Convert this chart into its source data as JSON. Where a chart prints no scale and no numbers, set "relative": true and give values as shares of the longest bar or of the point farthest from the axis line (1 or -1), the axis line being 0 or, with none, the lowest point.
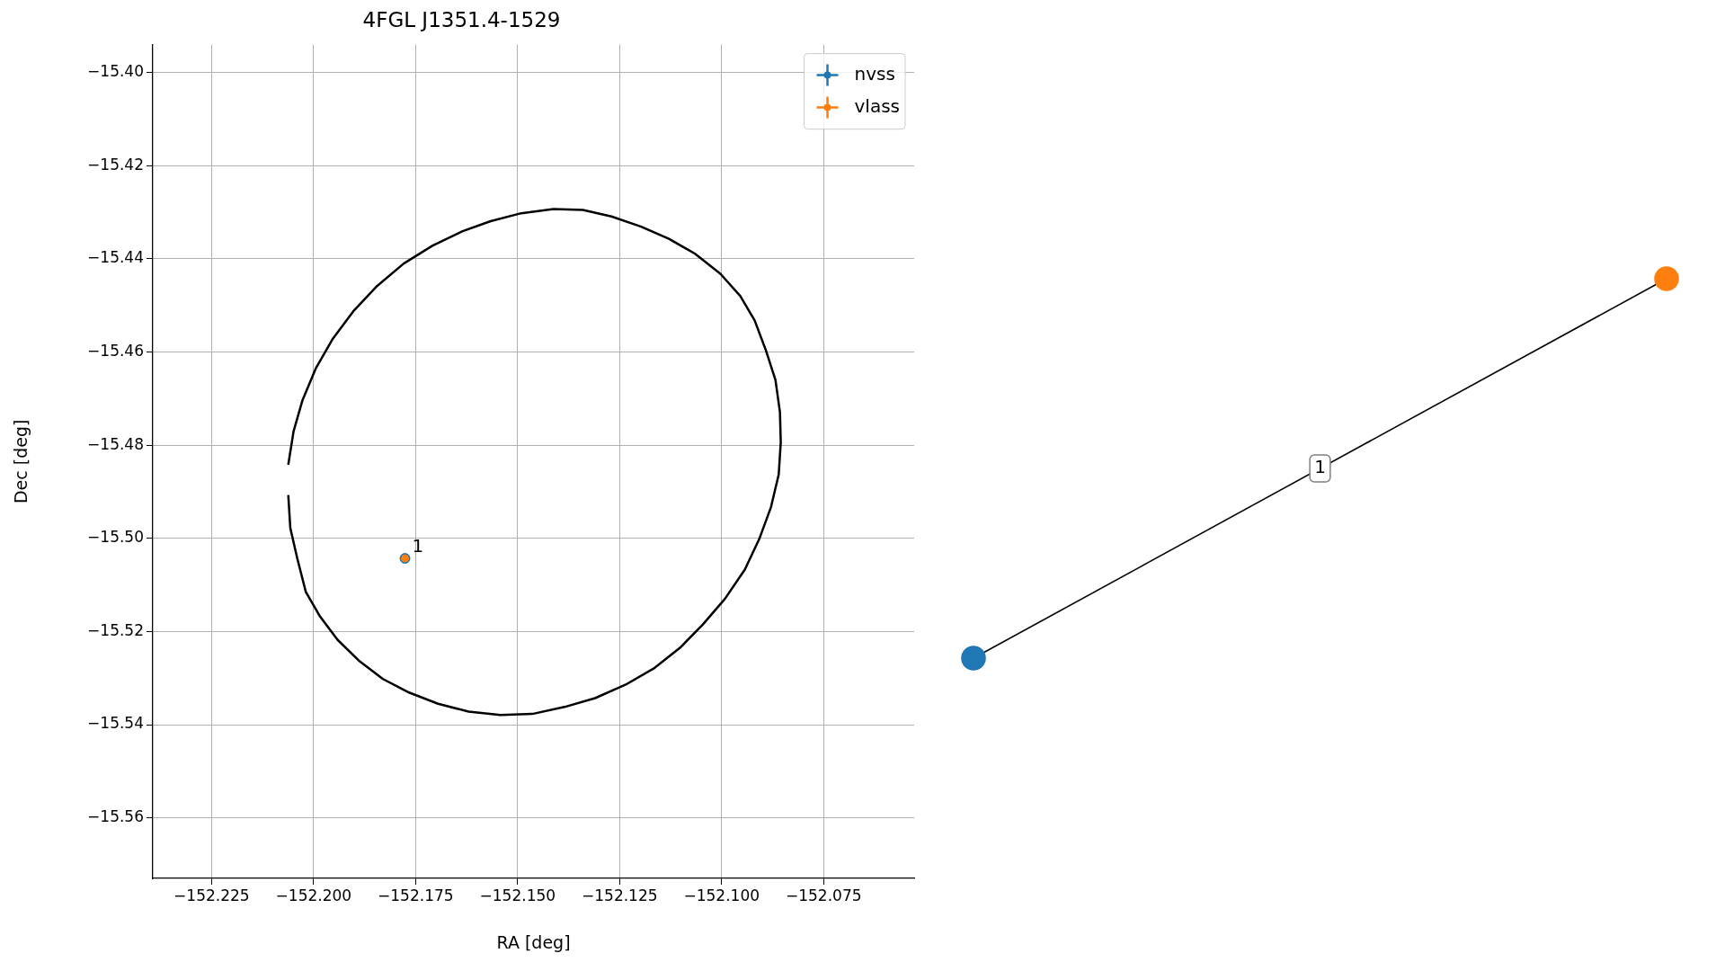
{
  "chart_data": [
    {
      "type": "scatter",
      "title": "4FGL J1351.4-1529",
      "xlabel": "RA [deg]",
      "ylabel": "Dec [deg]",
      "xlim": [
        -152.2394,
        -152.0528
      ],
      "ylim": [
        -15.573,
        -15.394
      ],
      "xticks": [
        {
          "value": -152.225,
          "label": "−152.225"
        },
        {
          "value": -152.2,
          "label": "−152.200"
        },
        {
          "value": -152.175,
          "label": "−152.175"
        },
        {
          "value": -152.15,
          "label": "−152.150"
        },
        {
          "value": -152.125,
          "label": "−152.125"
        },
        {
          "value": -152.1,
          "label": "−152.100"
        },
        {
          "value": -152.075,
          "label": "−152.075"
        }
      ],
      "yticks": [
        {
          "value": -15.4,
          "label": "−15.40"
        },
        {
          "value": -15.42,
          "label": "−15.42"
        },
        {
          "value": -15.44,
          "label": "−15.44"
        },
        {
          "value": -15.46,
          "label": "−15.46"
        },
        {
          "value": -15.48,
          "label": "−15.48"
        },
        {
          "value": -15.5,
          "label": "−15.50"
        },
        {
          "value": -15.52,
          "label": "−15.52"
        },
        {
          "value": -15.54,
          "label": "−15.54"
        },
        {
          "value": -15.56,
          "label": "−15.56"
        }
      ],
      "grid": true,
      "legend": "top right",
      "marker": "circle",
      "series": [
        {
          "type": "line",
          "marker": "none",
          "color": "#000000",
          "x": [
            -152.2062,
            -152.2049,
            -152.2027,
            -152.1995,
            -152.1954,
            -152.1903,
            -152.1844,
            -152.1779,
            -152.1709,
            -152.1636,
            -152.1566,
            -152.1491,
            -152.1412,
            -152.134,
            -152.127,
            -152.1197,
            -152.1129,
            -152.1065,
            -152.1003,
            -152.0954,
            -152.0919,
            -152.0892,
            -152.0868,
            -152.0857,
            -152.0855,
            -152.086,
            -152.0879,
            -152.0908,
            -152.0943,
            -152.0992,
            -152.1046,
            -152.1102,
            -152.1164,
            -152.1235,
            -152.131,
            -152.1385,
            -152.1464,
            -152.1542,
            -152.162,
            -152.1695,
            -152.1766,
            -152.183,
            -152.1887,
            -152.1941,
            -152.1984,
            -152.2019,
            -152.204,
            -152.2057,
            -152.2062
          ],
          "values": [
            -15.4842,
            -15.477,
            -15.4703,
            -15.4636,
            -15.4573,
            -15.4513,
            -15.4458,
            -15.441,
            -15.4372,
            -15.4341,
            -15.4319,
            -15.4302,
            -15.4293,
            -15.4295,
            -15.4309,
            -15.4331,
            -15.4357,
            -15.4389,
            -15.4432,
            -15.448,
            -15.4532,
            -15.4595,
            -15.466,
            -15.4729,
            -15.4794,
            -15.4863,
            -15.4933,
            -15.5002,
            -15.5067,
            -15.513,
            -15.5185,
            -15.5235,
            -15.5278,
            -15.5314,
            -15.5343,
            -15.5362,
            -15.5377,
            -15.5379,
            -15.5372,
            -15.5355,
            -15.5331,
            -15.5302,
            -15.5264,
            -15.5218,
            -15.5168,
            -15.5115,
            -15.5043,
            -15.4978,
            -15.4907
          ]
        },
        {
          "name": "nvss",
          "color": "#1f77b4",
          "x": [
            -152.1776
          ],
          "values": [
            -15.5043
          ]
        },
        {
          "name": "vlass",
          "color": "#ff7f0e",
          "x": [
            -152.1776
          ],
          "values": [
            -15.5043
          ]
        }
      ],
      "annotations": [
        {
          "text": "1",
          "x": -152.1776,
          "y": -15.5043
        }
      ]
    },
    {
      "type": "line",
      "relative": true,
      "categories": [
        null,
        null
      ],
      "marker": "circle",
      "series": [
        {
          "color": "#000000",
          "values": [
            0,
            1
          ],
          "colors": [
            "#1f77b4",
            "#ff7f0e"
          ]
        }
      ],
      "annotations": [
        "1"
      ]
    }
  ]
}
